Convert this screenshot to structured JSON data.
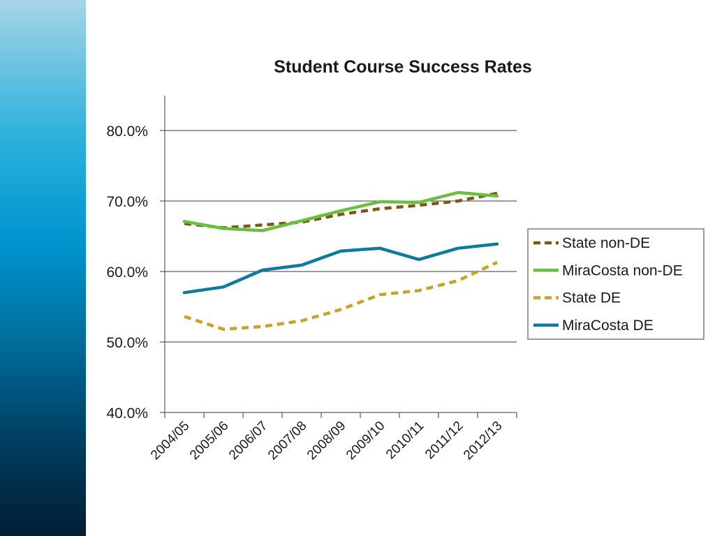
{
  "chart_data": {
    "type": "line",
    "title": "Student Course Success Rates",
    "xlabel": "",
    "ylabel": "",
    "categories": [
      "2004/05",
      "2005/06",
      "2006/07",
      "2007/08",
      "2008/09",
      "2009/10",
      "2010/11",
      "2011/12",
      "2012/13"
    ],
    "y_ticks": [
      "40.0%",
      "50.0%",
      "60.0%",
      "70.0%",
      "80.0%"
    ],
    "ylim": [
      40,
      85
    ],
    "grid": true,
    "legend_position": "right",
    "series": [
      {
        "name": "State non-DE",
        "color": "#7a5a10",
        "dash": true,
        "values": [
          66.8,
          66.2,
          66.6,
          67.0,
          68.1,
          68.9,
          69.4,
          70.0,
          71.1
        ]
      },
      {
        "name": "MiraCosta non-DE",
        "color": "#6abf3e",
        "dash": false,
        "values": [
          67.1,
          66.1,
          65.8,
          67.2,
          68.6,
          69.9,
          69.8,
          71.2,
          70.7
        ]
      },
      {
        "name": "State DE",
        "color": "#c9a227",
        "dash": true,
        "values": [
          53.6,
          51.8,
          52.2,
          53.0,
          54.6,
          56.7,
          57.3,
          58.7,
          61.3
        ]
      },
      {
        "name": "MiraCosta DE",
        "color": "#0f7a99",
        "dash": false,
        "values": [
          57.0,
          57.8,
          60.2,
          60.9,
          62.9,
          63.3,
          61.7,
          63.3,
          63.9
        ]
      }
    ]
  }
}
